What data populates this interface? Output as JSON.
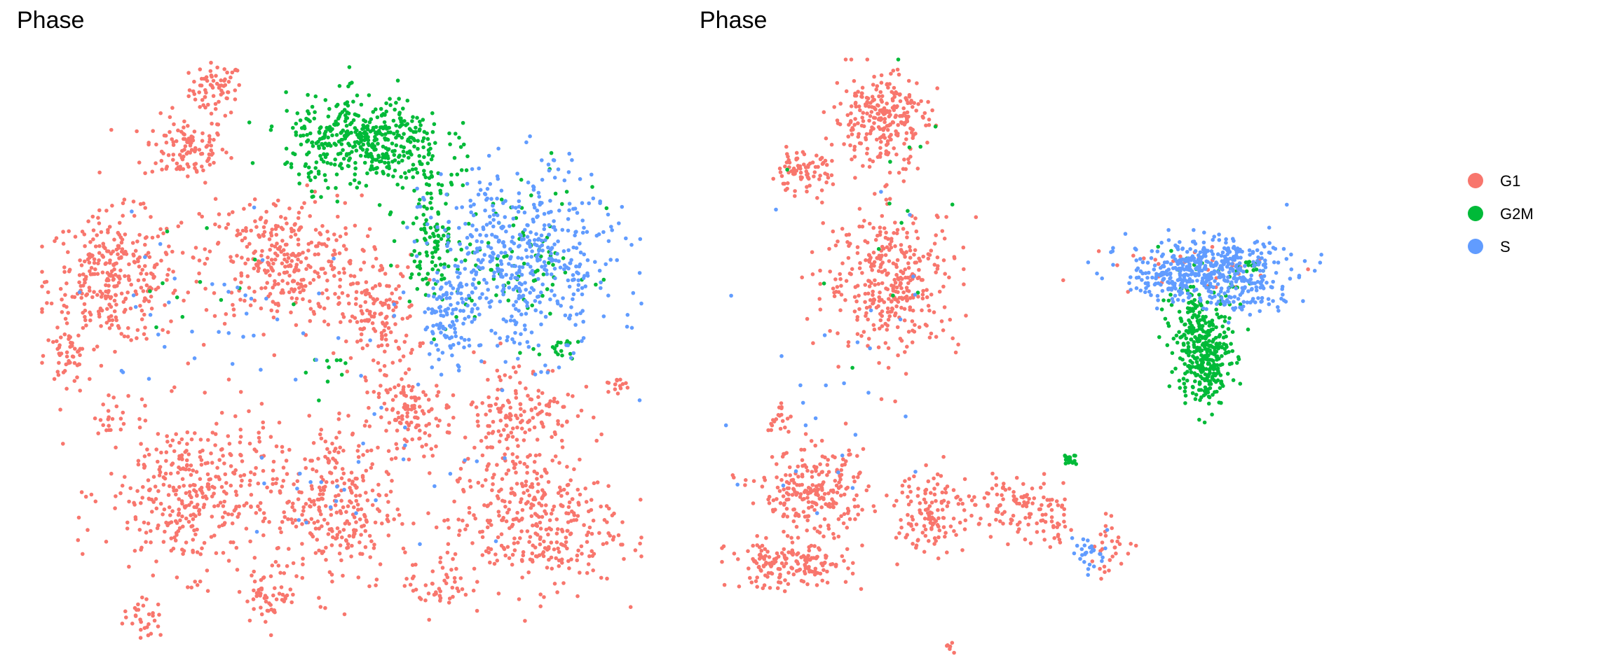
{
  "colors": {
    "G1": "#F8766D",
    "G2M": "#00BA38",
    "S": "#619CFF",
    "background": "#FFFFFF"
  },
  "legend": {
    "position": "right",
    "items": [
      {
        "label": "G1",
        "color": "#F8766D"
      },
      {
        "label": "G2M",
        "color": "#00BA38"
      },
      {
        "label": "S",
        "color": "#619CFF"
      }
    ]
  },
  "chart_data": [
    {
      "type": "scatter",
      "title": "Phase",
      "xlabel": "",
      "ylabel": "",
      "axes_visible": false,
      "grid": false,
      "xlim": [
        0,
        100
      ],
      "ylim": [
        0,
        100
      ],
      "color_by": "Phase",
      "series": [
        {
          "name": "G1",
          "clusters": [
            {
              "cx": 29,
              "cy": 95,
              "rx": 4.0,
              "ry": 4.0,
              "n": 70
            },
            {
              "cx": 24,
              "cy": 85,
              "rx": 6.5,
              "ry": 5.0,
              "n": 110
            },
            {
              "cx": 12,
              "cy": 63,
              "rx": 10.0,
              "ry": 10.0,
              "n": 330
            },
            {
              "cx": 4,
              "cy": 50,
              "rx": 3.0,
              "ry": 4.0,
              "n": 45
            },
            {
              "cx": 40,
              "cy": 66,
              "rx": 12.0,
              "ry": 10.0,
              "n": 330
            },
            {
              "cx": 56,
              "cy": 57,
              "rx": 6.0,
              "ry": 9.0,
              "n": 150
            },
            {
              "cx": 62,
              "cy": 40,
              "rx": 6.0,
              "ry": 6.0,
              "n": 120
            },
            {
              "cx": 25,
              "cy": 27,
              "rx": 13.0,
              "ry": 12.0,
              "n": 380
            },
            {
              "cx": 49,
              "cy": 25,
              "rx": 9.0,
              "ry": 13.0,
              "n": 280
            },
            {
              "cx": 79,
              "cy": 40,
              "rx": 9.0,
              "ry": 9.0,
              "n": 170
            },
            {
              "cx": 82,
              "cy": 22,
              "rx": 13.0,
              "ry": 10.0,
              "n": 340
            },
            {
              "cx": 66,
              "cy": 12,
              "rx": 5.0,
              "ry": 5.0,
              "n": 50
            },
            {
              "cx": 96,
              "cy": 46,
              "rx": 2.0,
              "ry": 3.0,
              "n": 15
            },
            {
              "cx": 17,
              "cy": 6,
              "rx": 3.0,
              "ry": 3.0,
              "n": 30
            },
            {
              "cx": 38,
              "cy": 10,
              "rx": 4.0,
              "ry": 4.0,
              "n": 50
            },
            {
              "cx": 12,
              "cy": 40,
              "rx": 3.0,
              "ry": 3.0,
              "n": 20
            }
          ]
        },
        {
          "name": "G2M",
          "clusters": [
            {
              "cx": 54,
              "cy": 86,
              "rx": 12.0,
              "ry": 7.0,
              "n": 460
            },
            {
              "cx": 65,
              "cy": 71,
              "rx": 4.5,
              "ry": 9.0,
              "n": 120
            },
            {
              "cx": 80,
              "cy": 66,
              "rx": 11.0,
              "ry": 12.0,
              "n": 90
            },
            {
              "cx": 24,
              "cy": 63,
              "rx": 12.0,
              "ry": 10.0,
              "n": 12
            },
            {
              "cx": 47,
              "cy": 48,
              "rx": 6.0,
              "ry": 4.0,
              "n": 10
            },
            {
              "cx": 87,
              "cy": 51,
              "rx": 2.5,
              "ry": 2.0,
              "n": 15
            }
          ]
        },
        {
          "name": "S",
          "clusters": [
            {
              "cx": 80,
              "cy": 66,
              "rx": 14.0,
              "ry": 14.0,
              "n": 520
            },
            {
              "cx": 68,
              "cy": 56,
              "rx": 4.0,
              "ry": 6.0,
              "n": 90
            },
            {
              "cx": 30,
              "cy": 60,
              "rx": 20.0,
              "ry": 15.0,
              "n": 40
            },
            {
              "cx": 55,
              "cy": 30,
              "rx": 20.0,
              "ry": 15.0,
              "n": 30
            }
          ]
        }
      ]
    },
    {
      "type": "scatter",
      "title": "Phase",
      "xlabel": "",
      "ylabel": "",
      "axes_visible": false,
      "grid": false,
      "xlim": [
        0,
        100
      ],
      "ylim": [
        0,
        100
      ],
      "color_by": "Phase",
      "series": [
        {
          "name": "G1",
          "clusters": [
            {
              "cx": 26,
              "cy": 90,
              "rx": 7.0,
              "ry": 7.0,
              "n": 260
            },
            {
              "cx": 13,
              "cy": 81,
              "rx": 4.5,
              "ry": 3.0,
              "n": 80
            },
            {
              "cx": 28,
              "cy": 63,
              "rx": 10.0,
              "ry": 11.0,
              "n": 360
            },
            {
              "cx": 15,
              "cy": 27,
              "rx": 8.0,
              "ry": 6.5,
              "n": 240
            },
            {
              "cx": 11,
              "cy": 15,
              "rx": 9.0,
              "ry": 3.5,
              "n": 170
            },
            {
              "cx": 35,
              "cy": 24,
              "rx": 6.0,
              "ry": 6.5,
              "n": 130
            },
            {
              "cx": 48,
              "cy": 25,
              "rx": 6.0,
              "ry": 4.0,
              "n": 80
            },
            {
              "cx": 54,
              "cy": 22,
              "rx": 4.0,
              "ry": 5.0,
              "n": 40
            },
            {
              "cx": 64,
              "cy": 18,
              "rx": 4.0,
              "ry": 4.0,
              "n": 30
            },
            {
              "cx": 9,
              "cy": 40,
              "rx": 2.0,
              "ry": 3.0,
              "n": 20
            },
            {
              "cx": 80,
              "cy": 65,
              "rx": 14.0,
              "ry": 4.0,
              "n": 30
            },
            {
              "cx": 37,
              "cy": 1,
              "rx": 1.0,
              "ry": 1.0,
              "n": 6
            }
          ]
        },
        {
          "name": "G2M",
          "clusters": [
            {
              "cx": 79,
              "cy": 50,
              "rx": 4.0,
              "ry": 7.0,
              "n": 300
            },
            {
              "cx": 78,
              "cy": 58,
              "rx": 5.0,
              "ry": 6.0,
              "n": 100
            },
            {
              "cx": 57,
              "cy": 33,
              "rx": 1.0,
              "ry": 1.0,
              "n": 18
            },
            {
              "cx": 26,
              "cy": 75,
              "rx": 12.0,
              "ry": 20.0,
              "n": 15
            },
            {
              "cx": 87,
              "cy": 65,
              "rx": 2.0,
              "ry": 2.0,
              "n": 20
            }
          ]
        },
        {
          "name": "S",
          "clusters": [
            {
              "cx": 80,
              "cy": 65,
              "rx": 12.0,
              "ry": 4.5,
              "n": 380
            },
            {
              "cx": 73,
              "cy": 63,
              "rx": 5.0,
              "ry": 3.0,
              "n": 80
            },
            {
              "cx": 86,
              "cy": 60,
              "rx": 6.0,
              "ry": 3.0,
              "n": 60
            },
            {
              "cx": 60,
              "cy": 17,
              "rx": 3.0,
              "ry": 3.0,
              "n": 30
            },
            {
              "cx": 20,
              "cy": 50,
              "rx": 15.0,
              "ry": 30.0,
              "n": 30
            }
          ]
        }
      ]
    }
  ]
}
